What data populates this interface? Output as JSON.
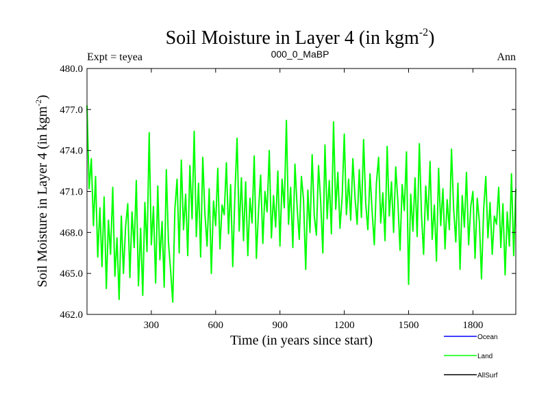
{
  "chart_data": {
    "type": "line",
    "title": "Soil Moisture in Layer 4 (in kgm",
    "title_sup": "-2",
    "title_close": ")",
    "left_label": "Expt = teyea",
    "center_label": "000_0_MaBP",
    "right_label": "Ann",
    "xlabel": "Time (in years since start)",
    "ylabel": "Soil Moisture in Layer 4 (in kgm",
    "ylabel_sup": "-2",
    "ylabel_close": ")",
    "xlim": [
      0,
      2000
    ],
    "ylim": [
      462.0,
      480.0
    ],
    "x_ticks": [
      300,
      600,
      900,
      1200,
      1500,
      1800
    ],
    "x_tick_labels": [
      "300",
      "600",
      "900",
      "1200",
      "1500",
      "1800"
    ],
    "y_ticks": [
      462,
      465,
      468,
      471,
      474,
      477,
      480
    ],
    "y_tick_labels": [
      "462.0",
      "465.0",
      "468.0",
      "471.0",
      "474.0",
      "477.0",
      "480.0"
    ],
    "legend": [
      {
        "name": "Ocean",
        "color": "#0000ff"
      },
      {
        "name": "Land",
        "color": "#00ff00"
      },
      {
        "name": "AllSurf",
        "color": "#000000"
      }
    ],
    "series": [
      {
        "name": "Land",
        "color": "#00ff00",
        "x": [
          0,
          10,
          20,
          30,
          40,
          50,
          60,
          70,
          80,
          90,
          100,
          110,
          120,
          130,
          140,
          150,
          160,
          170,
          180,
          190,
          200,
          210,
          220,
          230,
          240,
          250,
          260,
          270,
          280,
          290,
          300,
          310,
          320,
          330,
          340,
          350,
          360,
          370,
          380,
          390,
          400,
          410,
          420,
          430,
          440,
          450,
          460,
          470,
          480,
          490,
          500,
          510,
          520,
          530,
          540,
          550,
          560,
          570,
          580,
          590,
          600,
          610,
          620,
          630,
          640,
          650,
          660,
          670,
          680,
          690,
          700,
          710,
          720,
          730,
          740,
          750,
          760,
          770,
          780,
          790,
          800,
          810,
          820,
          830,
          840,
          850,
          860,
          870,
          880,
          890,
          900,
          910,
          920,
          930,
          940,
          950,
          960,
          970,
          980,
          990,
          1000,
          1010,
          1020,
          1030,
          1040,
          1050,
          1060,
          1070,
          1080,
          1090,
          1100,
          1110,
          1120,
          1130,
          1140,
          1150,
          1160,
          1170,
          1180,
          1190,
          1200,
          1210,
          1220,
          1230,
          1240,
          1250,
          1260,
          1270,
          1280,
          1290,
          1300,
          1310,
          1320,
          1330,
          1340,
          1350,
          1360,
          1370,
          1380,
          1390,
          1400,
          1410,
          1420,
          1430,
          1440,
          1450,
          1460,
          1470,
          1480,
          1490,
          1500,
          1510,
          1520,
          1530,
          1540,
          1550,
          1560,
          1570,
          1580,
          1590,
          1600,
          1610,
          1620,
          1630,
          1640,
          1650,
          1660,
          1670,
          1680,
          1690,
          1700,
          1710,
          1720,
          1730,
          1740,
          1750,
          1760,
          1770,
          1780,
          1790,
          1800,
          1810,
          1820,
          1830,
          1840,
          1850,
          1860,
          1870,
          1880,
          1890,
          1900,
          1910,
          1920,
          1930,
          1940,
          1950,
          1960,
          1970,
          1980,
          1990,
          2000
        ],
        "values": [
          477.3,
          471.2,
          473.4,
          468.5,
          472.1,
          466.2,
          469.8,
          465.5,
          470.6,
          463.9,
          468.9,
          466.4,
          471.3,
          464.8,
          467.6,
          463.1,
          469.2,
          465.0,
          468.4,
          470.1,
          464.7,
          469.5,
          466.9,
          471.8,
          464.1,
          468.3,
          463.4,
          470.2,
          466.6,
          475.3,
          467.1,
          469.9,
          464.3,
          471.4,
          466.0,
          468.8,
          464.0,
          472.6,
          467.3,
          465.2,
          462.9,
          469.7,
          471.9,
          466.5,
          473.3,
          468.2,
          470.8,
          466.3,
          472.9,
          469.0,
          475.4,
          467.7,
          471.6,
          466.2,
          473.5,
          469.4,
          467.0,
          471.2,
          465.0,
          470.3,
          468.5,
          472.7,
          466.8,
          470.0,
          469.3,
          473.1,
          467.9,
          471.5,
          465.5,
          470.9,
          474.9,
          468.1,
          472.0,
          467.4,
          471.7,
          466.3,
          470.5,
          468.7,
          473.6,
          466.1,
          469.6,
          472.2,
          467.2,
          471.0,
          469.5,
          474.0,
          467.6,
          470.7,
          468.4,
          472.5,
          467.0,
          471.9,
          469.8,
          476.2,
          468.6,
          471.3,
          466.9,
          473.0,
          469.9,
          467.5,
          472.1,
          470.4,
          465.3,
          471.1,
          468.0,
          473.7,
          469.2,
          467.8,
          472.9,
          470.2,
          466.5,
          474.4,
          469.0,
          471.8,
          467.9,
          476.1,
          469.7,
          472.4,
          468.3,
          470.6,
          475.2,
          469.3,
          471.9,
          468.9,
          473.4,
          470.5,
          468.6,
          472.6,
          469.1,
          474.8,
          470.1,
          468.2,
          472.3,
          469.5,
          467.1,
          471.6,
          473.5,
          468.7,
          470.9,
          467.4,
          474.3,
          469.2,
          471.7,
          468.0,
          472.8,
          470.3,
          466.7,
          471.5,
          469.6,
          473.9,
          464.2,
          470.8,
          468.1,
          472.0,
          467.7,
          474.5,
          469.3,
          466.4,
          471.4,
          468.9,
          473.2,
          467.5,
          470.0,
          465.9,
          472.7,
          468.5,
          471.2,
          466.8,
          470.4,
          468.2,
          474.1,
          469.8,
          467.3,
          471.6,
          465.3,
          470.7,
          468.4,
          472.4,
          467.1,
          469.9,
          471.0,
          466.1,
          470.5,
          468.8,
          464.6,
          469.7,
          472.1,
          467.6,
          470.2,
          466.4,
          469.2,
          468.6,
          471.3,
          466.9,
          470.1,
          464.9,
          469.5,
          467.0,
          472.3,
          466.3,
          471.2
        ]
      }
    ]
  }
}
